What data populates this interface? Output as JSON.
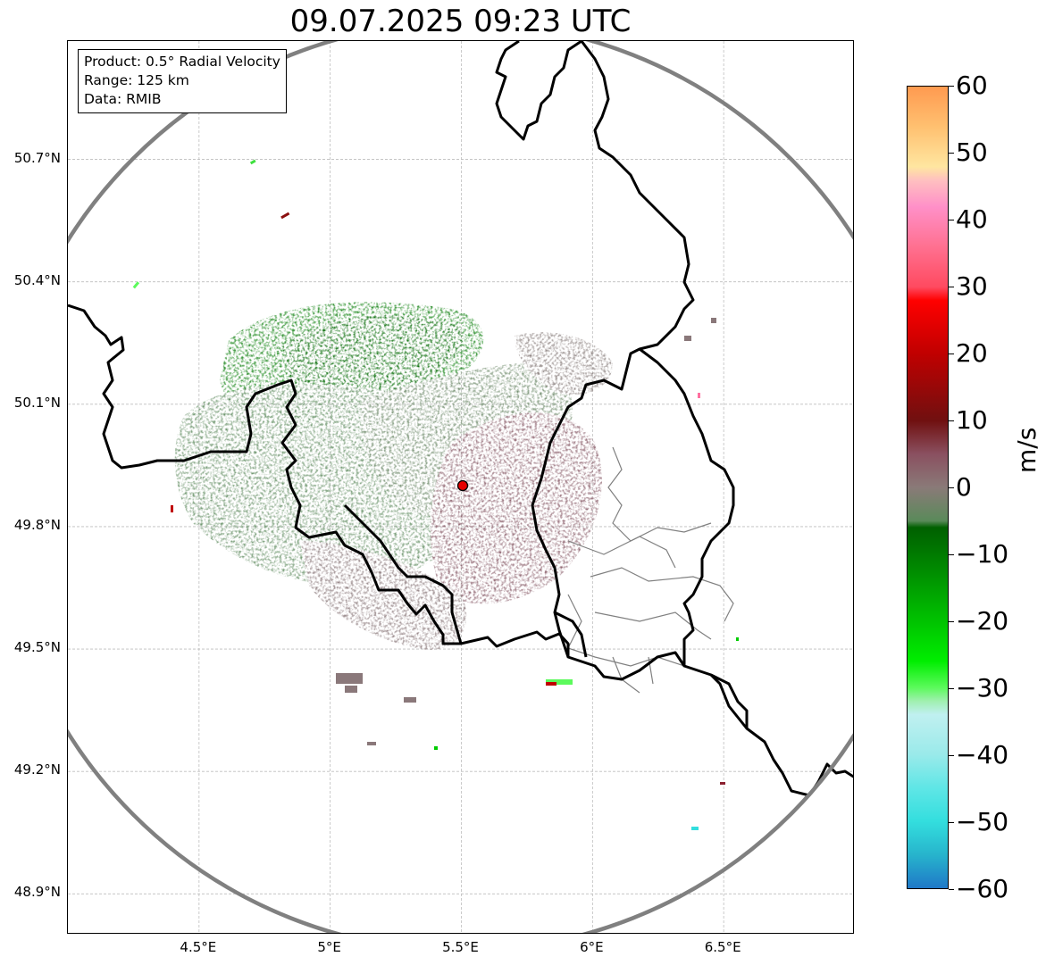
{
  "title": "09.07.2025 09:23 UTC",
  "info_box": {
    "line1": "Product: 0.5° Radial Velocity",
    "line2": "Range: 125 km",
    "line3": "Data: RMIB"
  },
  "map": {
    "lon_range": [
      4.0,
      7.0
    ],
    "lat_range": [
      48.8,
      50.99
    ],
    "radar_site": {
      "lon": 5.505,
      "lat": 49.915
    },
    "range_ring_km": 125,
    "gridlines": true,
    "x_ticks": [
      "4.5°E",
      "5°E",
      "5.5°E",
      "6°E",
      "6.5°E"
    ],
    "x_tick_values": [
      4.5,
      5.0,
      5.5,
      6.0,
      6.5
    ],
    "y_ticks": [
      "50.7°N",
      "50.4°N",
      "50.1°N",
      "49.8°N",
      "49.5°N",
      "49.2°N",
      "48.9°N"
    ],
    "y_tick_values": [
      50.7,
      50.4,
      50.1,
      49.8,
      49.5,
      49.2,
      48.9
    ],
    "colors": {
      "range_ring": "#808080",
      "border": "#000000",
      "district": "#808080",
      "grid": "#bdbdbd",
      "approaching_strong": "#007a00",
      "approaching_weak": "#5f8a5f",
      "receding_weak": "#8a5a6a",
      "receding_strong": "#8b2030",
      "radar_marker": "#e60000"
    }
  },
  "colorbar": {
    "label": "m/s",
    "vmin": -60,
    "vmax": 60,
    "ticks": [
      "60",
      "50",
      "40",
      "30",
      "20",
      "10",
      "0",
      "−10",
      "−20",
      "−30",
      "−40",
      "−50",
      "−60"
    ],
    "tick_values": [
      60,
      50,
      40,
      30,
      20,
      10,
      0,
      -10,
      -20,
      -30,
      -40,
      -50,
      -60
    ],
    "stops": [
      {
        "v": -60,
        "c": "#1f78c8"
      },
      {
        "v": -55,
        "c": "#27b4cc"
      },
      {
        "v": -50,
        "c": "#33dede"
      },
      {
        "v": -45,
        "c": "#5fe6e6"
      },
      {
        "v": -40,
        "c": "#9aeaea"
      },
      {
        "v": -34,
        "c": "#c0f0f0"
      },
      {
        "v": -32,
        "c": "#a0f0b0"
      },
      {
        "v": -30,
        "c": "#5cfa5c"
      },
      {
        "v": -26,
        "c": "#00ee00"
      },
      {
        "v": -18,
        "c": "#00b400"
      },
      {
        "v": -10,
        "c": "#007a00"
      },
      {
        "v": -6,
        "c": "#006000"
      },
      {
        "v": -5,
        "c": "#5a8a5a"
      },
      {
        "v": 0,
        "c": "#8a7a78"
      },
      {
        "v": 5,
        "c": "#8a5060"
      },
      {
        "v": 10,
        "c": "#701010"
      },
      {
        "v": 20,
        "c": "#c00000"
      },
      {
        "v": 28,
        "c": "#ff0000"
      },
      {
        "v": 30,
        "c": "#ff4a60"
      },
      {
        "v": 36,
        "c": "#ff7090"
      },
      {
        "v": 42,
        "c": "#ff90c8"
      },
      {
        "v": 46,
        "c": "#ffc0c0"
      },
      {
        "v": 48,
        "c": "#ffe6a0"
      },
      {
        "v": 54,
        "c": "#ffc070"
      },
      {
        "v": 60,
        "c": "#ff9a50"
      }
    ]
  }
}
